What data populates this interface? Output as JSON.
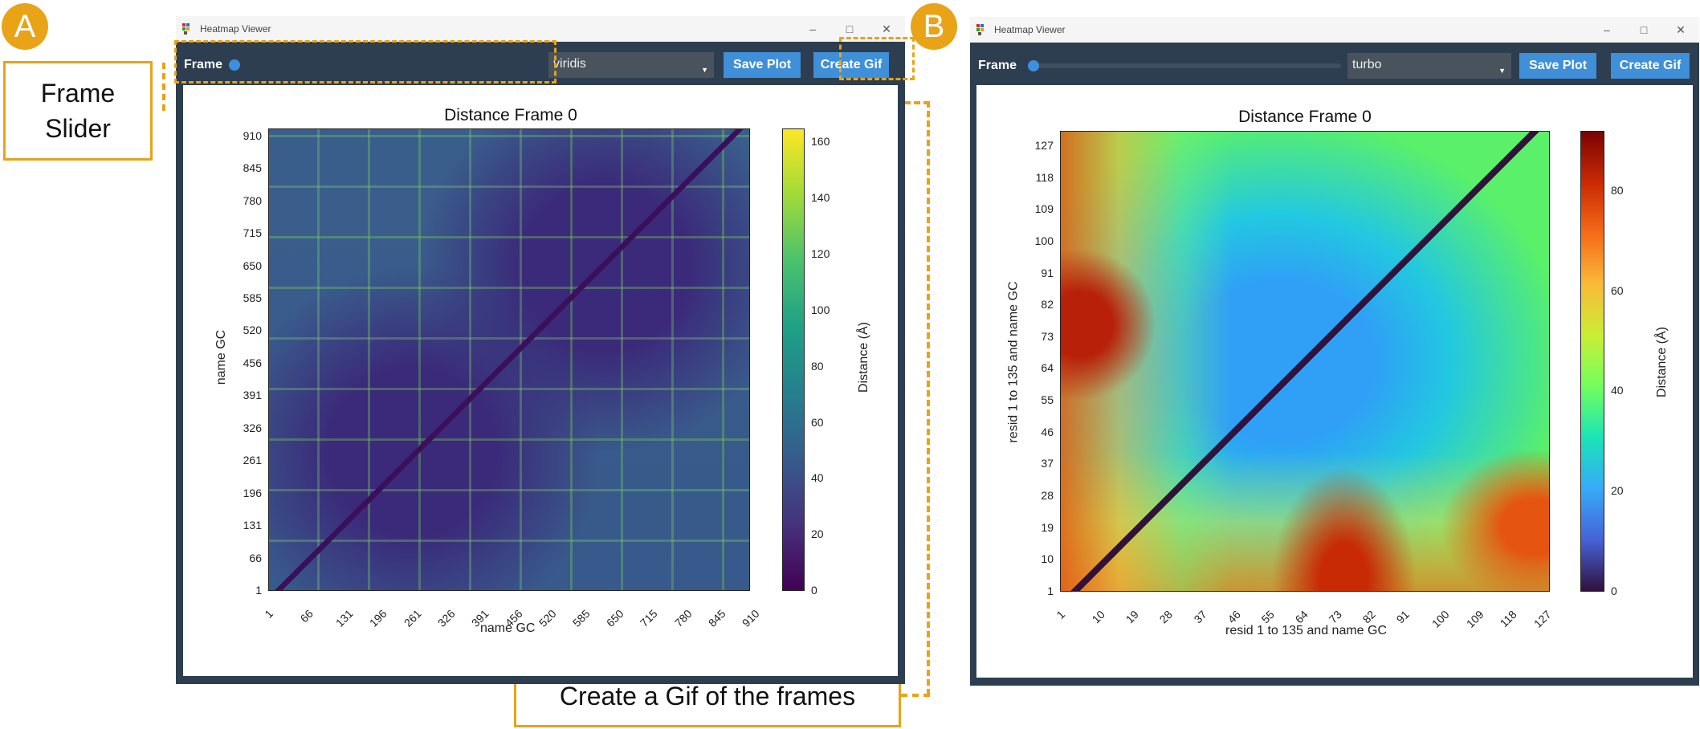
{
  "labels": {
    "a": "A",
    "b": "B"
  },
  "annotations": {
    "frame_slider": "Frame Slider",
    "create_gif": "Create a Gif of the frames"
  },
  "colors": {
    "accent": "#e8a317",
    "window_frame": "#2c3e50",
    "button": "#3f8fd9"
  },
  "window_a": {
    "title": "Heatmap Viewer",
    "frame_label": "Frame",
    "colormap": "viridis",
    "save_label": "Save Plot",
    "gif_label": "Create Gif",
    "plot_title": "Distance Frame 0",
    "xlabel": "name GC",
    "ylabel": "name GC",
    "cbar_label": "Distance (Å)"
  },
  "window_b": {
    "title": "Heatmap Viewer",
    "frame_label": "Frame",
    "colormap": "turbo",
    "save_label": "Save Plot",
    "gif_label": "Create Gif",
    "plot_title": "Distance Frame 0",
    "xlabel": "resid 1 to 135 and name GC",
    "ylabel": "resid 1 to 135 and name GC",
    "cbar_label": "Distance (Å)"
  },
  "chart_data": [
    {
      "type": "heatmap",
      "title": "Distance Frame 0",
      "colormap": "viridis",
      "xlabel": "name GC",
      "ylabel": "name GC",
      "x_ticks": [
        "1",
        "66",
        "131",
        "196",
        "261",
        "326",
        "391",
        "456",
        "520",
        "585",
        "650",
        "715",
        "780",
        "845",
        "910"
      ],
      "y_ticks": [
        "1",
        "66",
        "131",
        "196",
        "261",
        "326",
        "391",
        "456",
        "520",
        "585",
        "650",
        "715",
        "780",
        "845",
        "910"
      ],
      "colorbar": {
        "label": "Distance (Å)",
        "range": [
          0,
          165
        ],
        "ticks": [
          "0",
          "20",
          "40",
          "60",
          "80",
          "100",
          "120",
          "140",
          "160"
        ]
      }
    },
    {
      "type": "heatmap",
      "title": "Distance Frame 0",
      "colormap": "turbo",
      "xlabel": "resid 1 to 135 and name GC",
      "ylabel": "resid 1 to 135 and name GC",
      "x_ticks": [
        "1",
        "10",
        "19",
        "28",
        "37",
        "46",
        "55",
        "64",
        "73",
        "82",
        "91",
        "100",
        "109",
        "118",
        "127"
      ],
      "y_ticks": [
        "1",
        "10",
        "19",
        "28",
        "37",
        "46",
        "55",
        "64",
        "73",
        "82",
        "91",
        "100",
        "109",
        "118",
        "127"
      ],
      "colorbar": {
        "label": "Distance (Å)",
        "range": [
          0,
          92
        ],
        "ticks": [
          "0",
          "20",
          "40",
          "60",
          "80"
        ]
      }
    }
  ]
}
